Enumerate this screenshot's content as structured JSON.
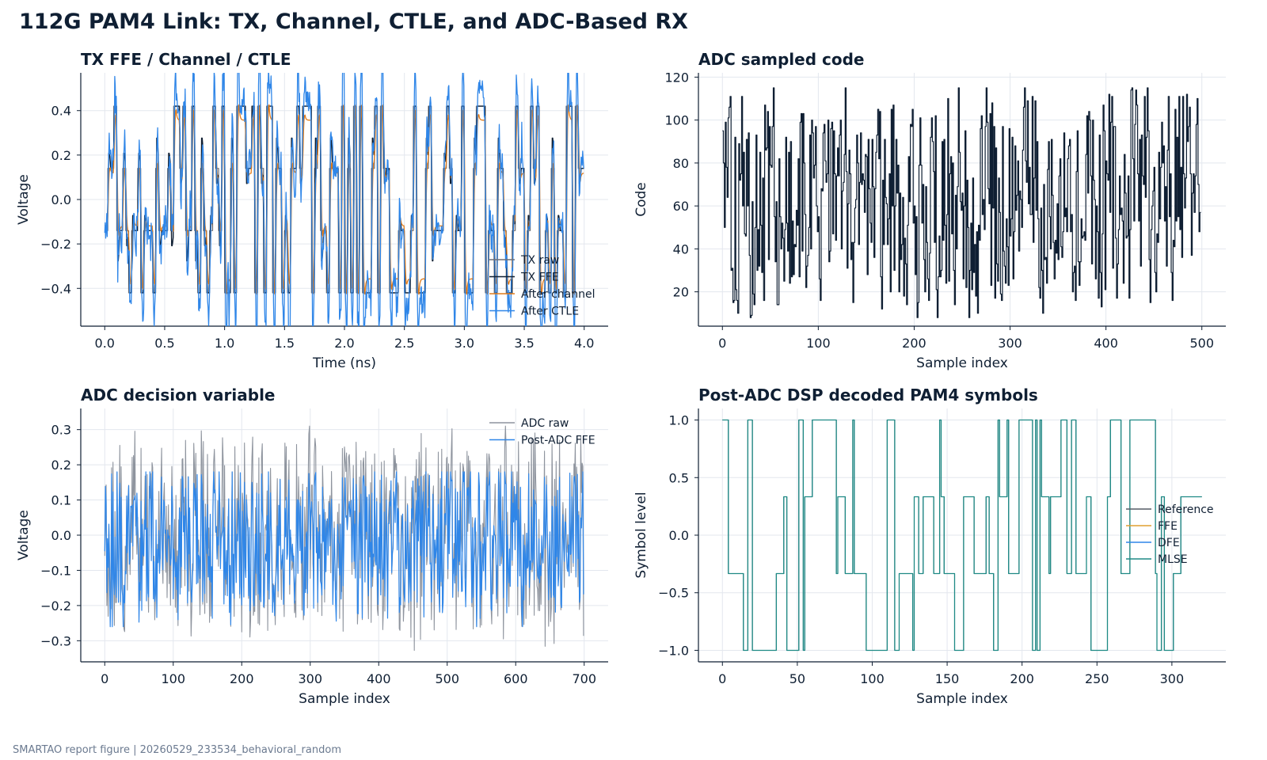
{
  "figure": {
    "title": "112G PAM4 Link: TX, Channel, CTLE, and ADC-Based RX",
    "footer": "SMARTAO report figure | 20260529_233534_behavioral_random"
  },
  "chart_data": [
    {
      "type": "line",
      "title": "TX FFE / Channel / CTLE",
      "xlabel": "Time (ns)",
      "ylabel": "Voltage",
      "xlim": [
        -0.2,
        4.2
      ],
      "ylim": [
        -0.57,
        0.57
      ],
      "xticks": [
        0.0,
        0.5,
        1.0,
        1.5,
        2.0,
        2.5,
        3.0,
        3.5,
        4.0
      ],
      "xtick_labels": [
        "0.0",
        "0.5",
        "1.0",
        "1.5",
        "2.0",
        "2.5",
        "3.0",
        "3.5",
        "4.0"
      ],
      "yticks": [
        -0.4,
        -0.2,
        0.0,
        0.2,
        0.4
      ],
      "ytick_labels": [
        "−0.4",
        "−0.2",
        "0.0",
        "0.2",
        "0.4"
      ],
      "grid": true,
      "legend": "lower-right",
      "x_range": [
        0,
        4.0
      ],
      "symbol_count": 160,
      "series": [
        {
          "name": "TX raw",
          "color": "#6b6f78",
          "kind": "tx_raw"
        },
        {
          "name": "TX FFE",
          "color": "#0f1f33",
          "kind": "tx_ffe"
        },
        {
          "name": "After channel",
          "color": "#e07b1a",
          "kind": "channel"
        },
        {
          "name": "After CTLE",
          "color": "#2f86e8",
          "kind": "ctle"
        }
      ]
    },
    {
      "type": "line",
      "title": "ADC sampled code",
      "xlabel": "Sample index",
      "ylabel": "Code",
      "xlim": [
        -25,
        525
      ],
      "ylim": [
        4,
        122
      ],
      "xticks": [
        0,
        100,
        200,
        300,
        400,
        500
      ],
      "xtick_labels": [
        "0",
        "100",
        "200",
        "300",
        "400",
        "500"
      ],
      "yticks": [
        20,
        40,
        60,
        80,
        100,
        120
      ],
      "ytick_labels": [
        "20",
        "40",
        "60",
        "80",
        "100",
        "120"
      ],
      "grid": true,
      "x_range": [
        0,
        500
      ],
      "point_count": 500,
      "value_range": [
        8,
        115
      ],
      "series": [
        {
          "name": "",
          "color": "#0f1f33",
          "kind": "adc_code",
          "step": true
        }
      ]
    },
    {
      "type": "line",
      "title": "ADC decision variable",
      "xlabel": "Sample index",
      "ylabel": "Voltage",
      "xlim": [
        -35,
        735
      ],
      "ylim": [
        -0.36,
        0.36
      ],
      "xticks": [
        0,
        100,
        200,
        300,
        400,
        500,
        600,
        700
      ],
      "xtick_labels": [
        "0",
        "100",
        "200",
        "300",
        "400",
        "500",
        "600",
        "700"
      ],
      "yticks": [
        -0.3,
        -0.2,
        -0.1,
        0.0,
        0.1,
        0.2,
        0.3
      ],
      "ytick_labels": [
        "−0.3",
        "−0.2",
        "−0.1",
        "0.0",
        "0.1",
        "0.2",
        "0.3"
      ],
      "grid": true,
      "legend": "top-right",
      "x_range": [
        0,
        700
      ],
      "point_count": 700,
      "series": [
        {
          "name": "ADC raw",
          "color": "#8e949e",
          "kind": "adc_raw",
          "range": [
            -0.33,
            0.31
          ]
        },
        {
          "name": "Post-ADC FFE",
          "color": "#2f86e8",
          "kind": "adc_ffe",
          "range": [
            -0.26,
            0.18
          ]
        }
      ]
    },
    {
      "type": "line",
      "title": "Post-ADC DSP decoded PAM4 symbols",
      "xlabel": "Sample index",
      "ylabel": "Symbol level",
      "xlim": [
        -16,
        336
      ],
      "ylim": [
        -1.1,
        1.1
      ],
      "xticks": [
        0,
        50,
        100,
        150,
        200,
        250,
        300
      ],
      "xtick_labels": [
        "0",
        "50",
        "100",
        "150",
        "200",
        "250",
        "300"
      ],
      "yticks": [
        -1.0,
        -0.5,
        0.0,
        0.5,
        1.0
      ],
      "ytick_labels": [
        "−1.0",
        "−0.5",
        "0.0",
        "0.5",
        "1.0"
      ],
      "grid": true,
      "legend": "center-right",
      "x_range": [
        0,
        320
      ],
      "levels": [
        -1.0,
        -0.3333,
        0.3333,
        1.0
      ],
      "series": [
        {
          "name": "Reference",
          "color": "#555b66",
          "kind": "ref",
          "step": true
        },
        {
          "name": "FFE",
          "color": "#e0a030",
          "kind": "ffe",
          "step": true
        },
        {
          "name": "DFE",
          "color": "#2f86e8",
          "kind": "dfe",
          "step": true
        },
        {
          "name": "MLSE",
          "color": "#1f8a85",
          "kind": "mlse",
          "step": true
        }
      ]
    }
  ]
}
